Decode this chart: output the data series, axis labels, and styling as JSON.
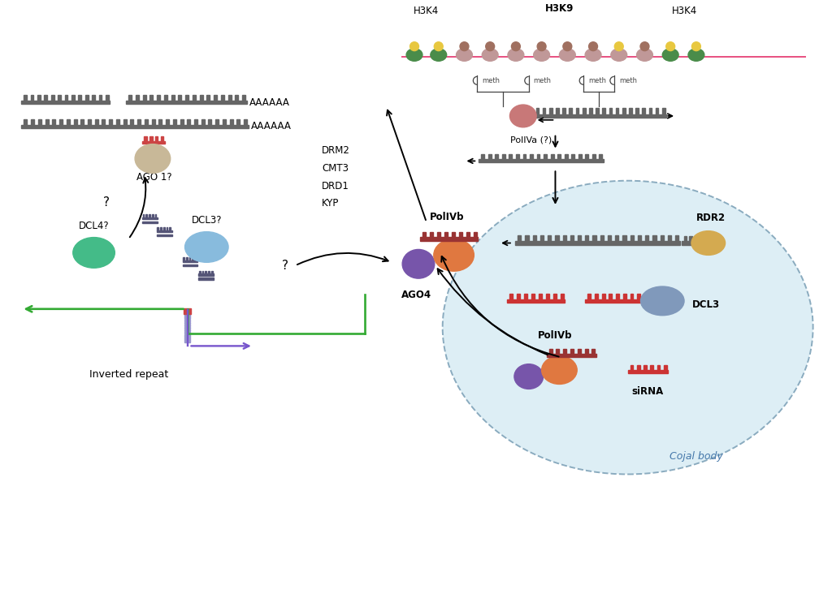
{
  "bg_color": "#ffffff",
  "fig_width": 10.24,
  "fig_height": 7.37,
  "labels": {
    "H3K4_left": "H3K4",
    "H3K9": "H3K9",
    "H3K4_right": "H3K4",
    "PolIVa": "PolIVa (?)",
    "DRM2": "DRM2",
    "CMT3": "CMT3",
    "DRD1": "DRD1",
    "KYP": "KYP",
    "AGO1": "AGO 1?",
    "AAAAAA": "AAAAAA",
    "RDR2": "RDR2",
    "DCL3": "DCL3",
    "siRNA": "siRNA",
    "PolIVb": "PolIVb",
    "AGO4": "AGO4",
    "DCL3q": "DCL3?",
    "DCL4q": "DCL4?",
    "Cojal": "Cojal body",
    "InvRepeat": "Inverted repeat"
  },
  "colors": {
    "dna_gray": "#666666",
    "dna_pink": "#e85080",
    "histone_green": "#4a8c4a",
    "histone_pink": "#c09898",
    "ball_yellow": "#e8c840",
    "ball_brown": "#a07060",
    "poliva_pink": "#c87878",
    "ago1_tan": "#c8b898",
    "ago1_red": "#cc4444",
    "purple": "#7755aa",
    "orange": "#e07840",
    "red_rna": "#cc3333",
    "dark_red_rna": "#993333",
    "rdr2_yellow": "#d4aa50",
    "dcl3_blue": "#8099bb",
    "dcl3q_blue": "#88bbdd",
    "dcl4q_green": "#44bb88",
    "frag_blue": "#555577",
    "green_arrow": "#33aa33",
    "purple_arrow": "#7755cc",
    "cojal_fill": "#ddeef5",
    "cojal_edge": "#8aabbf",
    "meth_color": "#444444"
  }
}
